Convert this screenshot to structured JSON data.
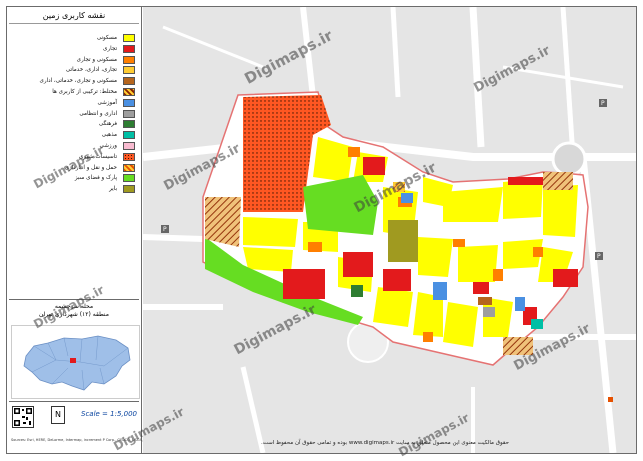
{
  "legend": {
    "title": "نقشه کاربری زمین",
    "items": [
      {
        "label": "مسکونی",
        "color": "#ffff00",
        "pattern": "solid"
      },
      {
        "label": "تجاری",
        "color": "#e31a1c",
        "pattern": "solid"
      },
      {
        "label": "مسکونی و تجاری",
        "color": "#ff7f00",
        "pattern": "solid"
      },
      {
        "label": "تجاری، اداری، خدماتی",
        "color": "#ffcc33",
        "pattern": "hatch"
      },
      {
        "label": "مسکونی و تجاری، خدماتی، اداری",
        "color": "#b5651d",
        "pattern": "solid"
      },
      {
        "label": "مختلط: ترکیبی از کاربری ها",
        "color": "#8b2500",
        "pattern": "hatch"
      },
      {
        "label": "آموزشی",
        "color": "#4a90e2",
        "pattern": "solid"
      },
      {
        "label": "اداری و انتظامی",
        "color": "#9e9e9e",
        "pattern": "solid"
      },
      {
        "label": "فرهنگی",
        "color": "#2e7d32",
        "pattern": "solid"
      },
      {
        "label": "مذهبی",
        "color": "#00bfa5",
        "pattern": "solid"
      },
      {
        "label": "ورزشی",
        "color": "#f8bbd0",
        "pattern": "solid"
      },
      {
        "label": "تاسیسات شهری",
        "color": "#ff5722",
        "pattern": "dots"
      },
      {
        "label": "حمل و نقل و انبارداری",
        "color": "#e65100",
        "pattern": "hatch"
      },
      {
        "label": "پارک و فضای سبز",
        "color": "#66dd22",
        "pattern": "solid"
      },
      {
        "label": "بایر",
        "color": "#a09a20",
        "pattern": "solid"
      }
    ]
  },
  "inset": {
    "title_line1": "محله سرچشمه",
    "title_line2": "منطقه (۱۲) شهرداری تهران"
  },
  "scale": {
    "label": "Scale = 1:5,000"
  },
  "credit": "Sources: Esri, HERE, DeLorme, Intermap, increment P Corp., GEBCO, USGS, FAO, NPS, NRCAN, GeoBase, IGN, Kadaster NL, Ordnance Survey",
  "footer": "حقوق مالکیت معنوی این محصول متعلق به سایت www.digimaps.ir بوده و تمامی حقوق آن محفوظ است.",
  "watermark": "Digimaps.ir"
}
